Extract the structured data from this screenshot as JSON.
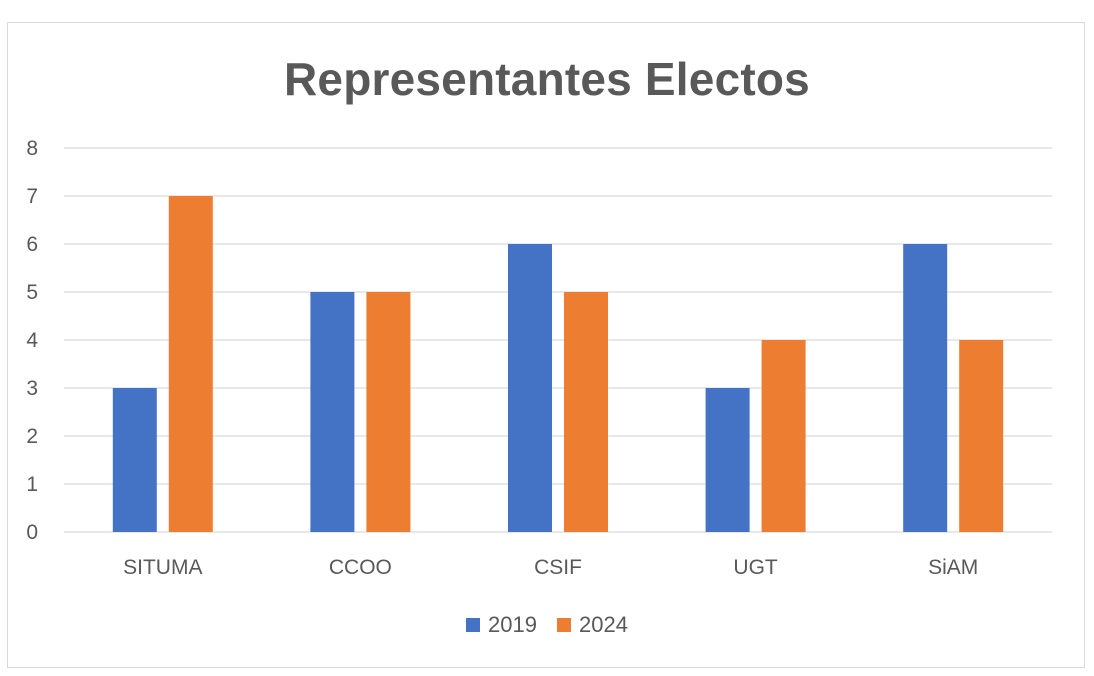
{
  "chart_data": {
    "type": "bar",
    "title": "Representantes Electos",
    "categories": [
      "SITUMA",
      "CCOO",
      "CSIF",
      "UGT",
      "SiAM"
    ],
    "series": [
      {
        "name": "2019",
        "color": "#4472C4",
        "values": [
          3,
          5,
          6,
          3,
          6
        ]
      },
      {
        "name": "2024",
        "color": "#ED7D31",
        "values": [
          7,
          5,
          5,
          4,
          4
        ]
      }
    ],
    "ylim": [
      0,
      8
    ],
    "yticks": [
      "0",
      "1",
      "2",
      "3",
      "4",
      "5",
      "6",
      "7",
      "8"
    ],
    "xlabel": "",
    "ylabel": "",
    "grid": true,
    "legend_position": "bottom"
  }
}
